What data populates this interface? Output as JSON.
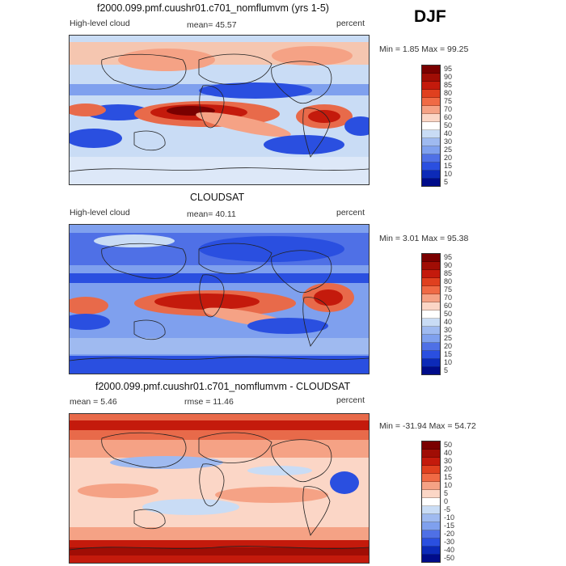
{
  "season": "DJF",
  "panels": [
    {
      "title": "f2000.099.pmf.cuushr01.c701_nomflumvm (yrs 1-5)",
      "left_label": "High-level cloud",
      "mean_text": "mean=   45.57",
      "units": "percent",
      "minmax": "Min =    1.85 Max =   99.25",
      "colorbar": [
        "95",
        "90",
        "85",
        "80",
        "75",
        "70",
        "60",
        "50",
        "40",
        "30",
        "25",
        "20",
        "15",
        "10",
        "5"
      ]
    },
    {
      "title": "CLOUDSAT",
      "left_label": "High-level cloud",
      "mean_text": "mean=   40.11",
      "units": "percent",
      "minmax": "Min =    3.01 Max =   95.38",
      "colorbar": [
        "95",
        "90",
        "85",
        "80",
        "75",
        "70",
        "60",
        "50",
        "40",
        "30",
        "25",
        "20",
        "15",
        "10",
        "5"
      ]
    },
    {
      "title": "f2000.099.pmf.cuushr01.c701_nomflumvm - CLOUDSAT",
      "left_label": "mean =    5.46",
      "mean_text": "rmse =   11.46",
      "units": "percent",
      "minmax": "Min = -31.94 Max =   54.72",
      "colorbar": [
        "50",
        "40",
        "30",
        "20",
        "15",
        "10",
        "5",
        "0",
        "-5",
        "-10",
        "-15",
        "-20",
        "-30",
        "-40",
        "-50"
      ]
    }
  ],
  "colors": {
    "dark_red": "#7a0000",
    "red": "#c41a0c",
    "light_red": "#f5a285",
    "white": "#ffffff",
    "light_blue": "#c9dcf5",
    "blue": "#2a4fe0",
    "dark_blue": "#000c8a"
  }
}
